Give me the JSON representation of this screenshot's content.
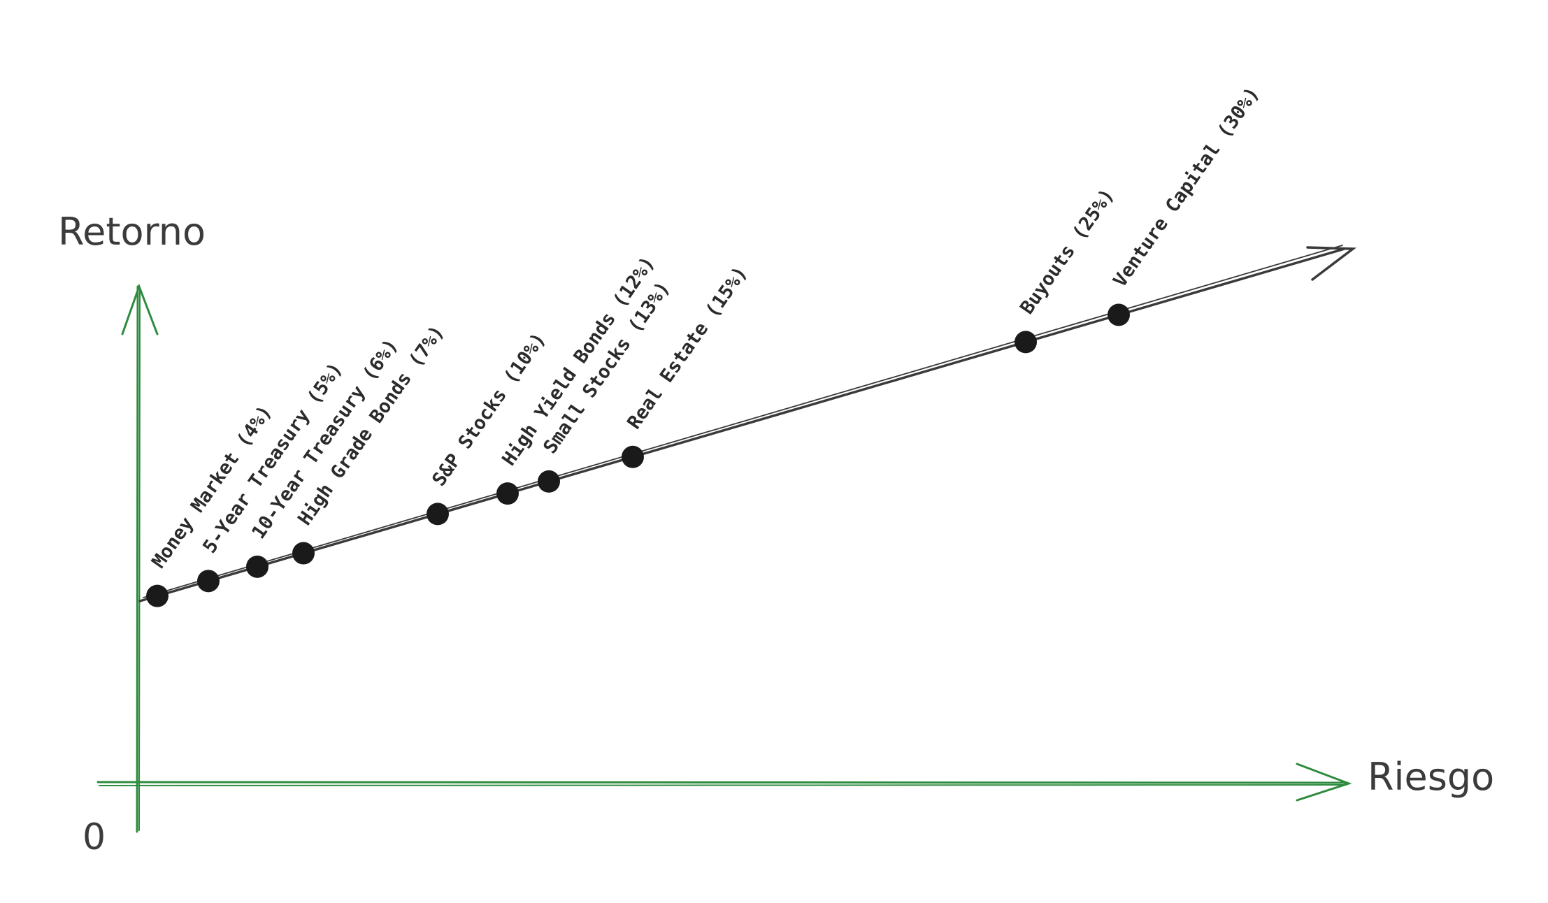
{
  "diagram": {
    "y_axis_label": "Retorno",
    "x_axis_label": "Riesgo",
    "origin_label": "0",
    "colors": {
      "axis": "#2e8b3e",
      "trend_line": "#3a3a3a",
      "point": "#1a1a1a",
      "text": "#3b3b3b"
    },
    "assets": [
      {
        "label": "Money Market (4%)",
        "risk_order": 1
      },
      {
        "label": "5-Year Treasury (5%)",
        "risk_order": 2
      },
      {
        "label": "10-Year Treasury (6%)",
        "risk_order": 3
      },
      {
        "label": "High Grade Bonds (7%)",
        "risk_order": 4
      },
      {
        "label": "S&P Stocks (10%)",
        "risk_order": 5
      },
      {
        "label": "High Yield Bonds (12%)",
        "risk_order": 6
      },
      {
        "label": "Small Stocks (13%)",
        "risk_order": 7
      },
      {
        "label": "Real Estate (15%)",
        "risk_order": 8
      },
      {
        "label": "Buyouts (25%)",
        "risk_order": 9
      },
      {
        "label": "Venture Capital (30%)",
        "risk_order": 10
      }
    ]
  }
}
